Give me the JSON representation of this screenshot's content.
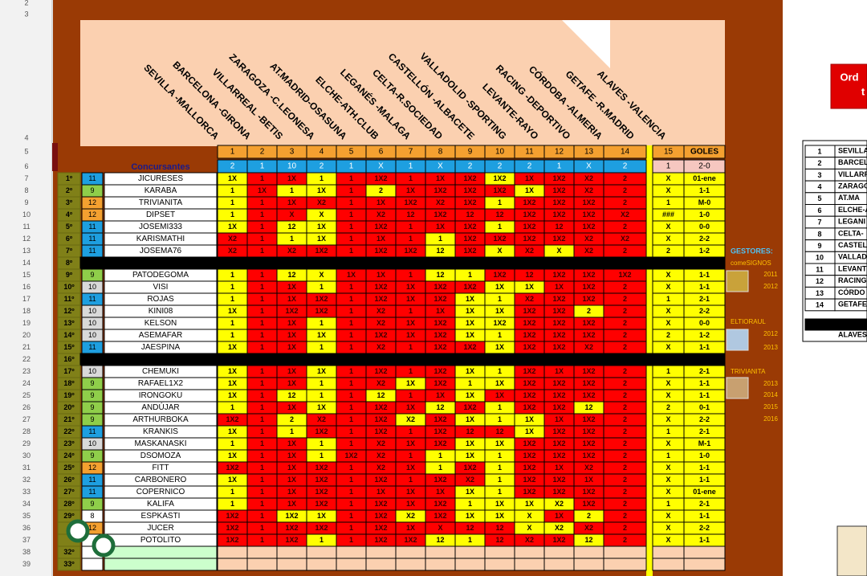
{
  "row_numbers": [
    2,
    3,
    4,
    5,
    6,
    7,
    8,
    9,
    10,
    11,
    12,
    13,
    14,
    15,
    16,
    17,
    18,
    19,
    20,
    21,
    22,
    23,
    24,
    25,
    26,
    27,
    28,
    29,
    30,
    31,
    32,
    33,
    34,
    35,
    36,
    37,
    38,
    39
  ],
  "matches": [
    "SEVILLA -MALLORCA",
    "BARCELONA -GIRONA",
    "VILLARREAL -BETIS",
    "ZARAGOZA -C.LEONESA",
    "AT.MADRID-OSASUNA",
    "ELCHE-ATH.CLUB",
    "LEGANÉS -MALAGA",
    "CELTA-R.SOCIEDAD",
    "CASTELLÓN -ALBACETE",
    "VALLADOLID -SPORTING",
    "LEVANTE-RAYO",
    "RACING -DEPORTIVO",
    "CÓRDOBA -ALMERIA",
    "GETAFE -R.MADRID",
    "ALAVES -VALENCIA"
  ],
  "header": {
    "numbers": [
      1,
      2,
      3,
      4,
      5,
      6,
      7,
      8,
      9,
      10,
      11,
      12,
      13,
      14
    ],
    "col15": 15,
    "goles": "GOLES",
    "concursantes": "Concursantes"
  },
  "results": {
    "picks": [
      "2",
      "1",
      "10",
      "2",
      "1",
      "X",
      "1",
      "X",
      "2",
      "2",
      "2",
      "1",
      "X",
      "2"
    ],
    "col15": "1",
    "goles": "2-0"
  },
  "colors": {
    "y": "#ffff00",
    "r": "#ff0000",
    "11": "#1e9fe0",
    "9": "#8fce4a",
    "12": "#f4a030",
    "10": "#d9d9d9",
    "8": "#ffffff"
  },
  "rows": [
    {
      "rank": "1º",
      "num": 11,
      "name": "JICURESES",
      "picks": [
        "1X",
        "1",
        "1X",
        "1",
        "1",
        "1X2",
        "1",
        "1X",
        "1X2",
        "1X2",
        "1X",
        "1X2",
        "X2",
        "2"
      ],
      "hits": "yrryrrrrryrrrr",
      "col15": "X",
      "goles": "01-ene"
    },
    {
      "rank": "2º",
      "num": 9,
      "name": "KARABA",
      "picks": [
        "1",
        "1X",
        "1",
        "1X",
        "1",
        "2",
        "1X",
        "1X2",
        "1X2",
        "1X2",
        "1X",
        "1X2",
        "X2",
        "2"
      ],
      "hits": "yryyryrrrryrrr",
      "col15": "X",
      "goles": "1-1"
    },
    {
      "rank": "3º",
      "num": 12,
      "name": "TRIVIANITA",
      "picks": [
        "1",
        "1",
        "1X",
        "X2",
        "1",
        "1X",
        "1X2",
        "X2",
        "1X2",
        "1",
        "1X2",
        "1X2",
        "1X2",
        "2"
      ],
      "hits": "yrrrrrrrryrrrr",
      "col15": "1",
      "goles": "M-0"
    },
    {
      "rank": "4º",
      "num": 12,
      "name": "DIPSET",
      "picks": [
        "1",
        "1",
        "X",
        "X",
        "1",
        "X2",
        "12",
        "1X2",
        "12",
        "12",
        "1X2",
        "1X2",
        "1X2",
        "X2"
      ],
      "hits": "yrryrrrrrrrrrr",
      "col15": "###",
      "goles": "1-0"
    },
    {
      "rank": "5º",
      "num": 11,
      "name": "JOSEMI333",
      "picks": [
        "1X",
        "1",
        "12",
        "1X",
        "1",
        "1X2",
        "1",
        "1X",
        "1X2",
        "1",
        "1X2",
        "12",
        "1X2",
        "2"
      ],
      "hits": "yryyrrrrryrrrr",
      "col15": "X",
      "goles": "0-0"
    },
    {
      "rank": "6º",
      "num": 11,
      "name": "KARISMATHI",
      "picks": [
        "X2",
        "1",
        "1",
        "1X",
        "1",
        "1X",
        "1",
        "1",
        "1X2",
        "1X2",
        "1X2",
        "1X2",
        "X2",
        "X2"
      ],
      "hits": "rryyrrryrrrrrr",
      "col15": "X",
      "goles": "2-2"
    },
    {
      "rank": "7º",
      "num": 11,
      "name": "JOSEMA76",
      "picks": [
        "X2",
        "1",
        "X2",
        "1X2",
        "1",
        "1X2",
        "1X2",
        "12",
        "1X2",
        "X",
        "X2",
        "X",
        "X2",
        "2"
      ],
      "hits": "rrrrrrryryryrr",
      "col15": "2",
      "goles": "1-2"
    },
    {
      "rank": "8º",
      "black": true
    },
    {
      "rank": "9º",
      "num": 9,
      "name": "PATODEGOMA",
      "picks": [
        "1",
        "1",
        "12",
        "X",
        "1X",
        "1X",
        "1",
        "12",
        "1",
        "1X2",
        "12",
        "1X2",
        "1X2",
        "1X2"
      ],
      "hits": "yryyrrryyrrrrr",
      "col15": "X",
      "goles": "1-1"
    },
    {
      "rank": "10º",
      "num": 10,
      "name": "VISI",
      "picks": [
        "1",
        "1",
        "1X",
        "1",
        "1",
        "1X2",
        "1X",
        "1X2",
        "1X2",
        "1X",
        "1X",
        "1X",
        "1X2",
        "2"
      ],
      "hits": "yrryrrrrryyrrr",
      "col15": "X",
      "goles": "1-1"
    },
    {
      "rank": "11º",
      "num": 11,
      "name": "ROJAS",
      "picks": [
        "1",
        "1",
        "1X",
        "1X2",
        "1",
        "1X2",
        "1X",
        "1X2",
        "1X",
        "1",
        "X2",
        "1X2",
        "1X2",
        "2"
      ],
      "hits": "yrrrrrrryyrrrr",
      "col15": "1",
      "goles": "2-1"
    },
    {
      "rank": "12º",
      "num": 10,
      "name": "KINI08",
      "picks": [
        "1X",
        "1",
        "1X2",
        "1X2",
        "1",
        "X2",
        "1",
        "1X",
        "1X",
        "1X",
        "1X2",
        "1X2",
        "2",
        "2"
      ],
      "hits": "yrrrrrrryyrryr",
      "col15": "X",
      "goles": "2-2"
    },
    {
      "rank": "13º",
      "num": 10,
      "name": "KELSON",
      "picks": [
        "1",
        "1",
        "1X",
        "1",
        "1",
        "X2",
        "1X",
        "1X2",
        "1X",
        "1X2",
        "1X2",
        "1X2",
        "1X2",
        "2"
      ],
      "hits": "yrryrrrryyrrrr",
      "col15": "X",
      "goles": "0-0"
    },
    {
      "rank": "14º",
      "num": 10,
      "name": "ASEMAFAR",
      "picks": [
        "1",
        "1",
        "1X",
        "1X",
        "1",
        "1X2",
        "1X",
        "1X2",
        "1X",
        "1",
        "1X2",
        "1X2",
        "1X2",
        "2"
      ],
      "hits": "yrryrrrryyrrrr",
      "col15": "2",
      "goles": "1-2"
    },
    {
      "rank": "15º",
      "num": 11,
      "name": "JAESPINA",
      "picks": [
        "1X",
        "1",
        "1X",
        "1",
        "1",
        "X2",
        "1",
        "1X2",
        "1X2",
        "1X",
        "1X2",
        "1X2",
        "X2",
        "2"
      ],
      "hits": "yrryrrrrryrrrr",
      "col15": "X",
      "goles": "1-1"
    },
    {
      "rank": "16º",
      "black": true
    },
    {
      "rank": "17º",
      "num": 10,
      "name": "CHEMUKI",
      "picks": [
        "1X",
        "1",
        "1X",
        "1X",
        "1",
        "1X2",
        "1",
        "1X2",
        "1X",
        "1",
        "1X2",
        "1X",
        "1X2",
        "2"
      ],
      "hits": "yrryrrrryyrrrr",
      "col15": "1",
      "goles": "2-1"
    },
    {
      "rank": "18º",
      "num": 9,
      "name": "RAFAEL1X2",
      "picks": [
        "1X",
        "1",
        "1X",
        "1",
        "1",
        "X2",
        "1X",
        "1X2",
        "1",
        "1X",
        "1X2",
        "1X2",
        "1X2",
        "2"
      ],
      "hits": "yrryrryryyrrrr",
      "col15": "X",
      "goles": "1-1"
    },
    {
      "rank": "19º",
      "num": 9,
      "name": "IRONGOKU",
      "picks": [
        "1X",
        "1",
        "12",
        "1",
        "1",
        "12",
        "1",
        "1X",
        "1X",
        "1X",
        "1X2",
        "1X2",
        "1X2",
        "2"
      ],
      "hits": "yryyryrryrrrrr",
      "col15": "X",
      "goles": "1-1"
    },
    {
      "rank": "20º",
      "num": 9,
      "name": "ANDÚJAR",
      "picks": [
        "1",
        "1",
        "1X",
        "1X",
        "1",
        "1X2",
        "1X",
        "12",
        "1X2",
        "1",
        "1X2",
        "1X2",
        "12",
        "2"
      ],
      "hits": "yrryrrryryrryr",
      "col15": "2",
      "goles": "0-1"
    },
    {
      "rank": "21º",
      "num": 9,
      "name": "ARTHURBOKA",
      "picks": [
        "1X2",
        "1",
        "2",
        "X2",
        "1",
        "1X2",
        "X2",
        "1X2",
        "1X",
        "1",
        "1X",
        "1X",
        "1X2",
        "2"
      ],
      "hits": "rryrrryryyyrrr",
      "col15": "X",
      "goles": "2-2"
    },
    {
      "rank": "22º",
      "num": 11,
      "name": "KRANKIS",
      "picks": [
        "1X",
        "1",
        "1",
        "1X2",
        "1",
        "1X2",
        "1",
        "1X2",
        "12",
        "12",
        "1X",
        "1X2",
        "1X2",
        "2"
      ],
      "hits": "yryrrrrrrryrrr",
      "col15": "1",
      "goles": "2-1"
    },
    {
      "rank": "23º",
      "num": 10,
      "name": "MASKANASKI",
      "picks": [
        "1",
        "1",
        "1X",
        "1",
        "1",
        "X2",
        "1X",
        "1X2",
        "1X",
        "1X",
        "1X2",
        "1X2",
        "1X2",
        "2"
      ],
      "hits": "yrryrrrryyrrrr",
      "col15": "X",
      "goles": "M-1"
    },
    {
      "rank": "24º",
      "num": 9,
      "name": "DSOMOZA",
      "picks": [
        "1X",
        "1",
        "1X",
        "1",
        "1X2",
        "X2",
        "1",
        "1",
        "1X",
        "1",
        "1X2",
        "1X2",
        "1X2",
        "2"
      ],
      "hits": "yrryrrryyyrrrr",
      "col15": "1",
      "goles": "1-0"
    },
    {
      "rank": "25º",
      "num": 12,
      "name": "FITT",
      "picks": [
        "1X2",
        "1",
        "1X",
        "1X2",
        "1",
        "X2",
        "1X",
        "1",
        "1X2",
        "1",
        "1X2",
        "1X",
        "X2",
        "2"
      ],
      "hits": "rrrrrrryryrrrr",
      "col15": "X",
      "goles": "1-1"
    },
    {
      "rank": "26º",
      "num": 11,
      "name": "CARBONERO",
      "picks": [
        "1X",
        "1",
        "1X",
        "1X2",
        "1",
        "1X2",
        "1",
        "1X2",
        "X2",
        "1",
        "1X2",
        "1X2",
        "1X",
        "2"
      ],
      "hits": "yrrrrrrrryrrrr",
      "col15": "X",
      "goles": "1-1"
    },
    {
      "rank": "27º",
      "num": 11,
      "name": "COPERNICO",
      "picks": [
        "1",
        "1",
        "1X",
        "1X2",
        "1",
        "1X",
        "1X",
        "1X",
        "1X",
        "1",
        "1X2",
        "1X2",
        "1X2",
        "2"
      ],
      "hits": "yrrrrrrryyrrrr",
      "col15": "X",
      "goles": "01-ene"
    },
    {
      "rank": "28º",
      "num": 9,
      "name": "KALIFA",
      "picks": [
        "1",
        "1",
        "1X",
        "1X2",
        "1",
        "1X2",
        "1X",
        "1X2",
        "1",
        "1X",
        "1X",
        "X2",
        "1X2",
        "2"
      ],
      "hits": "yrrrrrrryyyyrr",
      "col15": "1",
      "goles": "2-1"
    },
    {
      "rank": "29º",
      "num": 8,
      "name": "ESPKASTI",
      "picks": [
        "1X2",
        "1",
        "1X2",
        "1X",
        "1",
        "1X2",
        "X2",
        "1X2",
        "1X",
        "1X",
        "X",
        "1X",
        "2",
        "2"
      ],
      "hits": "rryyrryryyyryr",
      "col15": "X",
      "goles": "1-1"
    },
    {
      "num": 12,
      "name": "JUCER",
      "picks": [
        "1X2",
        "1",
        "1X2",
        "1X2",
        "1",
        "1X2",
        "1X",
        "X",
        "12",
        "12",
        "X",
        "X2",
        "X2",
        "2"
      ],
      "hits": "rrrrrrrrrryyrr",
      "col15": "X",
      "goles": "2-2"
    },
    {
      "name": "POTOLITO",
      "picks": [
        "1X2",
        "1",
        "1X2",
        "1",
        "1",
        "1X2",
        "1X2",
        "12",
        "1",
        "12",
        "X2",
        "1X2",
        "12",
        "2"
      ],
      "hits": "rrryrrryyrrryr",
      "col15": "X",
      "goles": "1-1"
    },
    {
      "rank": "32º"
    },
    {
      "rank": "33º"
    }
  ],
  "gestores": {
    "title": "GESTORES:",
    "groups": [
      {
        "name": "comeSIGNOS",
        "years": [
          "2011",
          "2012"
        ]
      },
      {
        "name": "ELTIORAUL",
        "years": [
          "2012",
          "2013"
        ]
      },
      {
        "name": "TRIVIANITA",
        "years": [
          "2013",
          "2014",
          "2015",
          "2016"
        ]
      }
    ]
  },
  "side_list": {
    "numbers": [
      "1",
      "2",
      "3",
      "4",
      "5",
      "6",
      "7",
      "8",
      "9",
      "10",
      "11",
      "12",
      "13",
      "14"
    ],
    "names": [
      "SEVILLA",
      "BARCEL",
      "VILLARR",
      "ZARAGO",
      "AT.MA",
      "ELCHE-A",
      "LEGANI",
      "CELTA-",
      "CASTEL",
      "VALLAD",
      "LEVANT",
      "RACING",
      "CÓRDO",
      "GETAFE"
    ],
    "last": "ALAVES"
  },
  "button": {
    "line1": "Ord",
    "line2": "t"
  }
}
